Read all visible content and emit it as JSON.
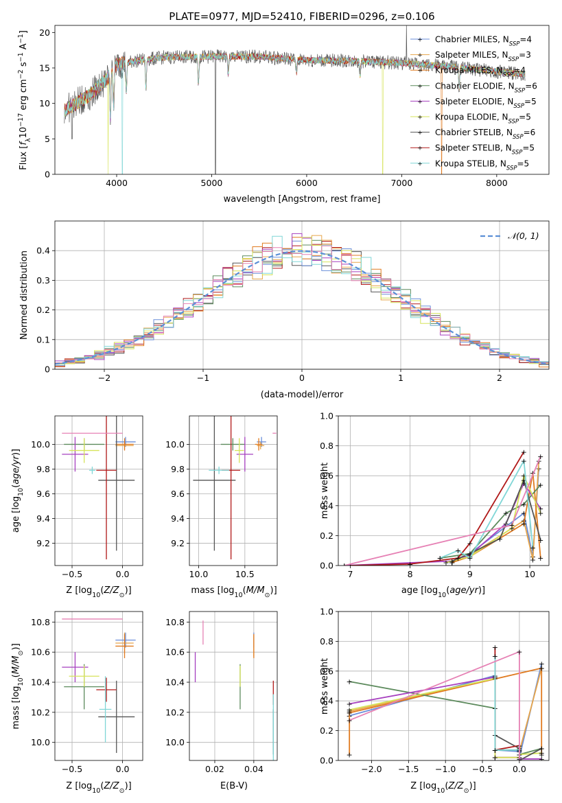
{
  "figure": {
    "title": "PLATE=0977, MJD=52410, FIBERID=0296, z=0.106",
    "series": [
      {
        "name": "Chabrier MILES",
        "nssp": "4",
        "color": "#6a8ed9"
      },
      {
        "name": "Salpeter MILES",
        "nssp": "3",
        "color": "#e7a54a"
      },
      {
        "name": "Kroupa MILES",
        "nssp": "4",
        "color": "#e07a1f"
      },
      {
        "name": "Chabrier ELODIE",
        "nssp": "6",
        "color": "#5c8a5c"
      },
      {
        "name": "Salpeter ELODIE",
        "nssp": "5",
        "color": "#a63fbf"
      },
      {
        "name": "Kroupa ELODIE",
        "nssp": "5",
        "color": "#d6e35a"
      },
      {
        "name": "Chabrier STELIB",
        "nssp": "6",
        "color": "#555555"
      },
      {
        "name": "Salpeter STELIB",
        "nssp": "5",
        "color": "#b01818"
      },
      {
        "name": "Kroupa STELIB",
        "nssp": "5",
        "color": "#7fd6d6"
      }
    ],
    "extra_colors": {
      "pink": "#e680b4"
    }
  },
  "chart_data": [
    {
      "type": "line",
      "id": "spectrum",
      "xlabel": "wavelength [Angstrom, rest frame]",
      "ylabel": "Flux [f_λ 10^-17 erg cm^-2 s^-1 A^-1]",
      "xlim": [
        3350,
        8550
      ],
      "ylim": [
        0,
        21
      ],
      "xticks": [
        4000,
        5000,
        6000,
        7000,
        8000
      ],
      "yticks": [
        0,
        5,
        10,
        15,
        20
      ],
      "grid": false,
      "legend": "top-right",
      "continuum": [
        [
          3450,
          9.0
        ],
        [
          3600,
          10.2
        ],
        [
          3700,
          11.0
        ],
        [
          3900,
          13.5
        ],
        [
          4000,
          15.5
        ],
        [
          4200,
          16.0
        ],
        [
          4500,
          16.5
        ],
        [
          5000,
          16.6
        ],
        [
          5500,
          16.6
        ],
        [
          6000,
          16.1
        ],
        [
          6500,
          16.0
        ],
        [
          7000,
          15.7
        ],
        [
          7500,
          15.2
        ],
        [
          8000,
          14.5
        ],
        [
          8300,
          14.1
        ]
      ],
      "absorption_lines": [
        [
          3934,
          6
        ],
        [
          3969,
          5
        ],
        [
          4102,
          4
        ],
        [
          4308,
          4
        ],
        [
          4861,
          4
        ],
        [
          5175,
          2.5
        ],
        [
          5892,
          2
        ],
        [
          6563,
          2
        ],
        [
          7605,
          3
        ]
      ],
      "drops": [
        [
          3530,
          5
        ],
        [
          3910,
          0
        ],
        [
          4060,
          0
        ],
        [
          5040,
          0.8
        ],
        [
          6800,
          0
        ],
        [
          7420,
          0
        ]
      ],
      "spike": [
        7050,
        21
      ]
    },
    {
      "type": "histogram",
      "id": "residuals",
      "xlabel": "(data-model)/error",
      "ylabel": "Normed distribution",
      "xlim": [
        -2.5,
        2.5
      ],
      "ylim": [
        0,
        0.5
      ],
      "xticks": [
        -2,
        -1,
        0,
        1,
        2
      ],
      "yticks": [
        0,
        0.1,
        0.2,
        0.3,
        0.4
      ],
      "grid": true,
      "legend": "top-right",
      "reference": {
        "name": "N(0,1)",
        "mean": 0,
        "sigma": 1,
        "color": "#5b8fd6"
      },
      "bin_width": 0.1
    },
    {
      "type": "errorbar",
      "id": "z-age",
      "xlabel": "Z [log10(Z/Z⊙)]",
      "ylabel": "age  [log10(age/yr)]",
      "xlim": [
        -0.67,
        0.2
      ],
      "ylim": [
        9.02,
        10.23
      ],
      "xticks": [
        -0.5,
        0.0
      ],
      "yticks": [
        9.2,
        9.4,
        9.6,
        9.8,
        10.0
      ],
      "grid": true,
      "points": [
        {
          "c": "#6a8ed9",
          "x": 0.03,
          "xe": 0.1,
          "y": 10.02,
          "ye": 0.04
        },
        {
          "c": "#e7a54a",
          "x": 0.02,
          "xe": 0.09,
          "y": 9.99,
          "ye": 0.03
        },
        {
          "c": "#e07a1f",
          "x": 0.02,
          "xe": 0.09,
          "y": 10.0,
          "ye": 0.05
        },
        {
          "c": "#5c8a5c",
          "x": -0.38,
          "xe": 0.2,
          "y": 10.0,
          "ye": 0.05
        },
        {
          "c": "#a63fbf",
          "x": -0.47,
          "xe": 0.13,
          "y": 9.92,
          "ye": 0.14
        },
        {
          "c": "#d6e35a",
          "x": -0.38,
          "xe": 0.15,
          "y": 9.95,
          "ye": 0.1
        },
        {
          "c": "#555555",
          "x": -0.06,
          "xe": 0.18,
          "y": 9.71,
          "ye": 0.57
        },
        {
          "c": "#b01818",
          "x": -0.16,
          "xe": 0.1,
          "y": 9.79,
          "ye": 0.72
        },
        {
          "c": "#7fd6d6",
          "x": -0.3,
          "xe": 0.03,
          "y": 9.79,
          "ye": 0.03
        },
        {
          "c": "#e680b4",
          "x": -0.3,
          "xe": 0.3,
          "y": 10.09,
          "ye": 0.0
        }
      ]
    },
    {
      "type": "errorbar",
      "id": "mass-age",
      "xlabel": "mass [log10(M/M⊙)]",
      "ylabel": "",
      "xlim": [
        9.9,
        10.85
      ],
      "ylim": [
        9.02,
        10.23
      ],
      "xticks": [
        10.0,
        10.5
      ],
      "yticks": [
        9.2,
        9.4,
        9.6,
        9.8,
        10.0
      ],
      "grid": true,
      "points": [
        {
          "c": "#6a8ed9",
          "x": 10.68,
          "xe": 0.05,
          "y": 10.02,
          "ye": 0.04
        },
        {
          "c": "#e7a54a",
          "x": 10.67,
          "xe": 0.04,
          "y": 9.99,
          "ye": 0.03
        },
        {
          "c": "#e07a1f",
          "x": 10.65,
          "xe": 0.04,
          "y": 10.0,
          "ye": 0.05
        },
        {
          "c": "#5c8a5c",
          "x": 10.37,
          "xe": 0.13,
          "y": 10.0,
          "ye": 0.05
        },
        {
          "c": "#a63fbf",
          "x": 10.5,
          "xe": 0.09,
          "y": 9.92,
          "ye": 0.14
        },
        {
          "c": "#d6e35a",
          "x": 10.44,
          "xe": 0.05,
          "y": 9.95,
          "ye": 0.1
        },
        {
          "c": "#555555",
          "x": 10.17,
          "xe": 0.23,
          "y": 9.71,
          "ye": 0.57
        },
        {
          "c": "#b01818",
          "x": 10.35,
          "xe": 0.1,
          "y": 9.79,
          "ye": 0.72
        },
        {
          "c": "#7fd6d6",
          "x": 10.22,
          "xe": 0.11,
          "y": 9.79,
          "ye": 0.03
        },
        {
          "c": "#e680b4",
          "x": 10.82,
          "xe": 0.02,
          "y": 10.09,
          "ye": 0.0
        }
      ]
    },
    {
      "type": "line",
      "id": "age-weight",
      "xlabel": "age  [log10(age/yr)]",
      "ylabel": "mass weight",
      "xlim": [
        6.8,
        10.32
      ],
      "ylim": [
        0,
        1.0
      ],
      "xticks": [
        7,
        8,
        9,
        10
      ],
      "yticks": [
        0.0,
        0.2,
        0.4,
        0.6,
        0.8,
        1.0
      ],
      "grid": true,
      "series": [
        {
          "c": "#6a8ed9",
          "x": [
            8.7,
            9.0,
            9.9,
            10.05,
            10.15
          ],
          "y": [
            0.02,
            0.08,
            0.35,
            0.06,
            0.65
          ]
        },
        {
          "c": "#e7a54a",
          "x": [
            8.7,
            9.0,
            9.9,
            10.05,
            10.15
          ],
          "y": [
            0.02,
            0.07,
            0.3,
            0.04,
            0.7
          ]
        },
        {
          "c": "#e07a1f",
          "x": [
            8.7,
            9.0,
            9.9,
            10.05,
            10.18
          ],
          "y": [
            0.02,
            0.06,
            0.28,
            0.62,
            0.05
          ]
        },
        {
          "c": "#5c8a5c",
          "x": [
            8.5,
            9.0,
            9.6,
            9.9,
            10.18
          ],
          "y": [
            0.05,
            0.08,
            0.35,
            0.41,
            0.54
          ]
        },
        {
          "c": "#a63fbf",
          "x": [
            6.9,
            8.7,
            9.0,
            9.6,
            9.9,
            10.18
          ],
          "y": [
            0.0,
            0.03,
            0.07,
            0.28,
            0.55,
            0.38
          ]
        },
        {
          "c": "#d6e35a",
          "x": [
            8.6,
            9.0,
            9.7,
            9.9,
            10.18
          ],
          "y": [
            0.02,
            0.06,
            0.25,
            0.6,
            0.35
          ]
        },
        {
          "c": "#555555",
          "x": [
            8.7,
            9.0,
            9.5,
            9.9,
            10.18
          ],
          "y": [
            0.03,
            0.08,
            0.18,
            0.57,
            0.17
          ]
        },
        {
          "c": "#b01818",
          "x": [
            7.0,
            8.0,
            8.8,
            9.0,
            9.9
          ],
          "y": [
            0.0,
            0.01,
            0.05,
            0.15,
            0.76
          ]
        },
        {
          "c": "#7fd6d6",
          "x": [
            8.5,
            8.8,
            9.0,
            9.9,
            10.05
          ],
          "y": [
            0.05,
            0.1,
            0.05,
            0.7,
            0.12
          ]
        },
        {
          "c": "#e680b4",
          "x": [
            6.9,
            9.7,
            10.18
          ],
          "y": [
            0.0,
            0.27,
            0.73
          ]
        }
      ]
    },
    {
      "type": "errorbar",
      "id": "z-mass",
      "xlabel": "Z [log10(Z/Z⊙)]",
      "ylabel": "mass [log10(M/M⊙)]",
      "xlim": [
        -0.67,
        0.2
      ],
      "ylim": [
        9.88,
        10.87
      ],
      "xticks": [
        -0.5,
        0.0
      ],
      "yticks": [
        10.0,
        10.2,
        10.4,
        10.6,
        10.8
      ],
      "grid": true,
      "points": [
        {
          "c": "#6a8ed9",
          "x": 0.03,
          "xe": 0.1,
          "y": 10.68,
          "ye": 0.05
        },
        {
          "c": "#e7a54a",
          "x": 0.02,
          "xe": 0.09,
          "y": 10.66,
          "ye": 0.07
        },
        {
          "c": "#e07a1f",
          "x": 0.02,
          "xe": 0.09,
          "y": 10.64,
          "ye": 0.08
        },
        {
          "c": "#5c8a5c",
          "x": -0.38,
          "xe": 0.2,
          "y": 10.37,
          "ye": 0.15
        },
        {
          "c": "#a63fbf",
          "x": -0.47,
          "xe": 0.13,
          "y": 10.5,
          "ye": 0.1
        },
        {
          "c": "#d6e35a",
          "x": -0.38,
          "xe": 0.15,
          "y": 10.44,
          "ye": 0.07
        },
        {
          "c": "#555555",
          "x": -0.06,
          "xe": 0.18,
          "y": 10.17,
          "ye": 0.24
        },
        {
          "c": "#b01818",
          "x": -0.16,
          "xe": 0.1,
          "y": 10.35,
          "ye": 0.08
        },
        {
          "c": "#7fd6d6",
          "x": -0.17,
          "xe": 0.06,
          "y": 10.22,
          "ye": 0.22
        },
        {
          "c": "#e680b4",
          "x": -0.3,
          "xe": 0.3,
          "y": 10.82,
          "ye": 0.0
        }
      ]
    },
    {
      "type": "errorbar",
      "id": "ebv-mass",
      "xlabel": "E(B-V)",
      "ylabel": "",
      "xlim": [
        0.007,
        0.052
      ],
      "ylim": [
        9.88,
        10.87
      ],
      "xticks": [
        0.02,
        0.04
      ],
      "yticks": [
        10.0,
        10.2,
        10.4,
        10.6,
        10.8
      ],
      "grid": true,
      "points": [
        {
          "c": "#6a8ed9",
          "x": 0.04,
          "xe": 0,
          "y": 10.68,
          "ye": 0.05
        },
        {
          "c": "#e7a54a",
          "x": 0.04,
          "xe": 0,
          "y": 10.64,
          "ye": 0.07
        },
        {
          "c": "#e07a1f",
          "x": 0.04,
          "xe": 0,
          "y": 10.64,
          "ye": 0.08
        },
        {
          "c": "#5c8a5c",
          "x": 0.033,
          "xe": 0,
          "y": 10.37,
          "ye": 0.15
        },
        {
          "c": "#a63fbf",
          "x": 0.01,
          "xe": 0,
          "y": 10.5,
          "ye": 0.1
        },
        {
          "c": "#d6e35a",
          "x": 0.033,
          "xe": 0,
          "y": 10.44,
          "ye": 0.07
        },
        {
          "c": "#555555",
          "x": 0.05,
          "xe": 0,
          "y": 10.07,
          "ye": 0.15
        },
        {
          "c": "#b01818",
          "x": 0.05,
          "xe": 0,
          "y": 10.33,
          "ye": 0.08
        },
        {
          "c": "#7fd6d6",
          "x": 0.05,
          "xe": 0,
          "y": 10.1,
          "ye": 0.22
        },
        {
          "c": "#e680b4",
          "x": 0.014,
          "xe": 0,
          "y": 10.73,
          "ye": 0.08
        }
      ]
    },
    {
      "type": "line",
      "id": "z-weight",
      "xlabel": "Z [log10(Z/Z⊙)]",
      "ylabel": "mass weight",
      "xlim": [
        -2.45,
        0.4
      ],
      "ylim": [
        0,
        1.0
      ],
      "xticks": [
        -2.0,
        -1.5,
        -1.0,
        -0.5,
        0.0
      ],
      "yticks": [
        0.0,
        0.2,
        0.4,
        0.6,
        0.8,
        1.0
      ],
      "grid": true,
      "series": [
        {
          "c": "#6a8ed9",
          "x": [
            -2.3,
            -0.33,
            -0.33,
            0.0,
            0.0,
            0.3
          ],
          "y": [
            0.3,
            0.57,
            0.07,
            0.06,
            0.02,
            0.65
          ]
        },
        {
          "c": "#e7a54a",
          "x": [
            -2.3,
            -0.33,
            -0.33,
            0.0,
            0.0,
            0.3
          ],
          "y": [
            0.33,
            0.55,
            0.02,
            0.02,
            0.06,
            0.62
          ]
        },
        {
          "c": "#e07a1f",
          "x": [
            -2.3,
            -2.3,
            0.3,
            0.3
          ],
          "y": [
            0.04,
            0.32,
            0.62,
            0.04
          ]
        },
        {
          "c": "#5c8a5c",
          "x": [
            -2.3,
            -0.33,
            -0.33,
            0.0,
            0.0,
            0.3
          ],
          "y": [
            0.53,
            0.35,
            0.07,
            0.07,
            0.04,
            0.08
          ]
        },
        {
          "c": "#a63fbf",
          "x": [
            -2.3,
            -0.33,
            -0.33,
            0.0,
            0.0,
            0.3
          ],
          "y": [
            0.38,
            0.56,
            0.02,
            0.02,
            0.01,
            0.01
          ]
        },
        {
          "c": "#d6e35a",
          "x": [
            -2.3,
            -0.33,
            -0.33,
            0.0,
            0.0,
            0.3
          ],
          "y": [
            0.34,
            0.55,
            0.02,
            0.02,
            0.04,
            0.05
          ]
        },
        {
          "c": "#555555",
          "x": [
            -0.33,
            0.0,
            0.0,
            0.3
          ],
          "y": [
            0.17,
            0.08,
            0.0,
            0.08
          ]
        },
        {
          "c": "#b01818",
          "x": [
            -0.33,
            -0.33,
            0.0,
            0.0
          ],
          "y": [
            0.76,
            0.07,
            0.1,
            0.0
          ]
        },
        {
          "c": "#7fd6d6",
          "x": [
            -0.33,
            -0.33,
            0.0,
            0.0
          ],
          "y": [
            0.7,
            0.07,
            0.07,
            0.0
          ]
        },
        {
          "c": "#e680b4",
          "x": [
            -2.3,
            0.0,
            0.0
          ],
          "y": [
            0.27,
            0.73,
            0.0
          ]
        }
      ]
    }
  ]
}
